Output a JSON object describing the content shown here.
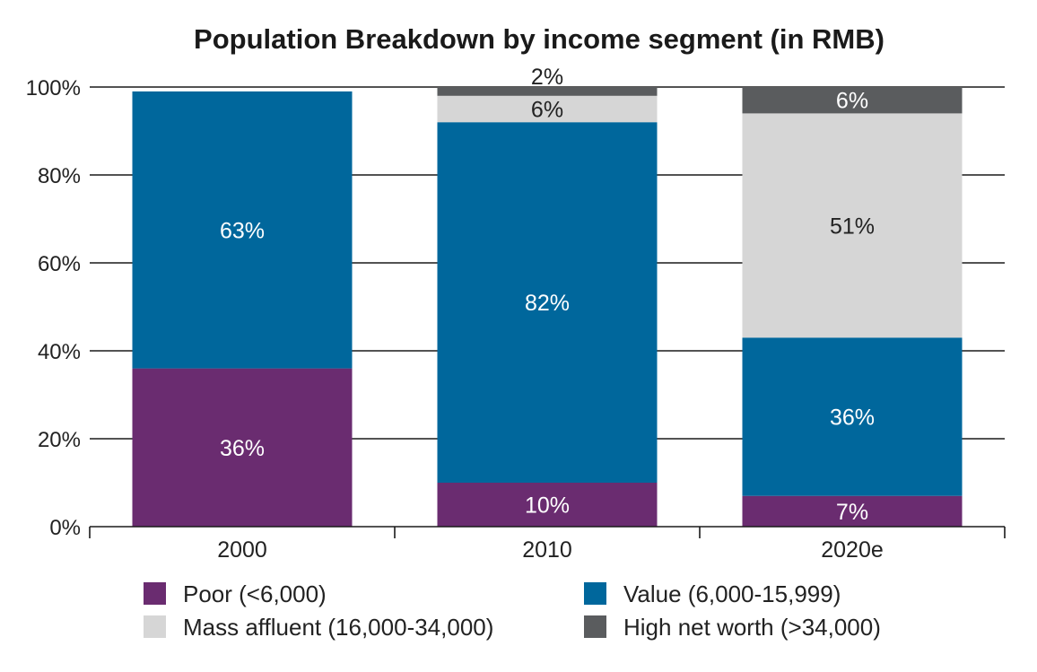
{
  "chart_data": {
    "type": "bar",
    "stacked": true,
    "title": "Population Breakdown by income segment (in RMB)",
    "xlabel": "",
    "ylabel": "",
    "ylim": [
      0,
      100
    ],
    "y_ticks": [
      "0%",
      "20%",
      "40%",
      "60%",
      "80%",
      "100%"
    ],
    "y_tick_values": [
      0,
      20,
      40,
      60,
      80,
      100
    ],
    "categories": [
      "2000",
      "2010",
      "2020e"
    ],
    "grid": true,
    "legend_position": "bottom",
    "series": [
      {
        "name": "Poor (<6,000)",
        "color": "#6a2c70",
        "values": [
          36,
          10,
          7
        ],
        "labels": [
          "36%",
          "10%",
          "7%"
        ],
        "label_color": "#ffffff"
      },
      {
        "name": "Value (6,000-15,999)",
        "color": "#00679c",
        "values": [
          63,
          82,
          36
        ],
        "labels": [
          "63%",
          "82%",
          "36%"
        ],
        "label_color": "#ffffff"
      },
      {
        "name": "Mass affluent (16,000-34,000)",
        "color": "#d6d6d6",
        "values": [
          0,
          6,
          51
        ],
        "labels": [
          "",
          "6%",
          "51%"
        ],
        "label_color": "#222222"
      },
      {
        "name": "High net worth (>34,000)",
        "color": "#5a5c5e",
        "values": [
          0,
          2,
          6
        ],
        "labels": [
          "",
          "2%",
          "6%"
        ],
        "label_color": "#ffffff"
      }
    ]
  }
}
